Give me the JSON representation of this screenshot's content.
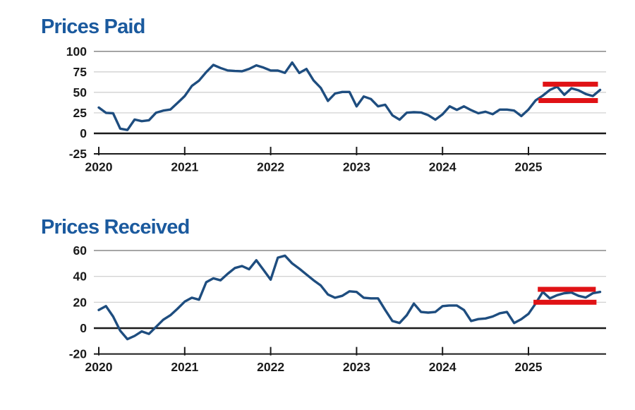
{
  "colors": {
    "title_blue": "#1b5a9e",
    "line_navy": "#1e4d7f",
    "highlight_red": "#e01215",
    "axis_black": "#1a1a1a",
    "grid_light": "#cccccc",
    "grid_top": "#888888",
    "background": "#ffffff"
  },
  "chart_data": [
    {
      "type": "line",
      "title": "Prices Paid",
      "x_start": "2020-01",
      "x_frequency": "monthly",
      "x_tick_labels": [
        "2020",
        "2021",
        "2022",
        "2023",
        "2024",
        "2025"
      ],
      "y_ticks": [
        100,
        75,
        50,
        25,
        0,
        -25
      ],
      "ylim": [
        -25,
        100
      ],
      "grid": true,
      "legend": "none",
      "series": [
        {
          "name": "prices-paid",
          "values": [
            31.5,
            25.0,
            24.5,
            5.8,
            4.1,
            16.9,
            14.9,
            16.0,
            25.2,
            27.8,
            29.1,
            37.1,
            45.5,
            57.8,
            64.4,
            74.7,
            83.5,
            79.8,
            76.8,
            76.1,
            75.7,
            78.7,
            83.0,
            80.2,
            76.7,
            76.6,
            73.8,
            86.4,
            73.7,
            78.6,
            64.5,
            55.5,
            39.6,
            48.6,
            50.5,
            50.5,
            33.0,
            45.0,
            41.9,
            33.0,
            34.9,
            22.0,
            16.7,
            25.2,
            25.8,
            25.5,
            22.2,
            16.7,
            23.2,
            33.0,
            28.7,
            33.0,
            28.3,
            24.5,
            26.4,
            23.4,
            29.0,
            29.0,
            27.8,
            21.1,
            29.1,
            40.2,
            46.0,
            53.0,
            57.0,
            47.0,
            55.0,
            52.5,
            48.0,
            45.5,
            53.0
          ]
        }
      ],
      "highlight_bars": [
        {
          "value": 60,
          "from_month": 62.0,
          "to_month": 69.7
        },
        {
          "value": 40,
          "from_month": 61.4,
          "to_month": 69.7
        }
      ]
    },
    {
      "type": "line",
      "title": "Prices Received",
      "x_start": "2020-01",
      "x_frequency": "monthly",
      "x_tick_labels": [
        "2020",
        "2021",
        "2022",
        "2023",
        "2024",
        "2025"
      ],
      "y_ticks": [
        60,
        40,
        20,
        0,
        -20
      ],
      "ylim": [
        -20,
        60
      ],
      "grid": true,
      "legend": "none",
      "series": [
        {
          "name": "prices-received",
          "values": [
            14.0,
            17.0,
            9.0,
            -2.0,
            -8.5,
            -6.0,
            -2.5,
            -4.5,
            1.0,
            6.5,
            10.0,
            15.0,
            20.5,
            23.5,
            22.0,
            35.5,
            38.5,
            37.0,
            42.0,
            46.5,
            48.0,
            45.5,
            52.5,
            45.0,
            37.5,
            54.5,
            56.0,
            50.0,
            46.0,
            41.5,
            37.0,
            33.0,
            26.0,
            23.5,
            25.0,
            28.5,
            28.0,
            23.5,
            23.0,
            23.0,
            14.0,
            5.5,
            4.0,
            10.0,
            19.0,
            12.5,
            12.0,
            12.5,
            17.0,
            17.5,
            17.5,
            14.0,
            5.5,
            7.0,
            7.5,
            9.0,
            11.5,
            12.5,
            4.0,
            7.0,
            11.0,
            19.0,
            28.0,
            23.0,
            25.5,
            27.0,
            27.5,
            25.0,
            23.7,
            27.0,
            28.0
          ]
        }
      ],
      "highlight_bars": [
        {
          "value": 30,
          "from_month": 61.3,
          "to_month": 69.4
        },
        {
          "value": 20,
          "from_month": 60.7,
          "to_month": 69.5
        }
      ]
    }
  ]
}
